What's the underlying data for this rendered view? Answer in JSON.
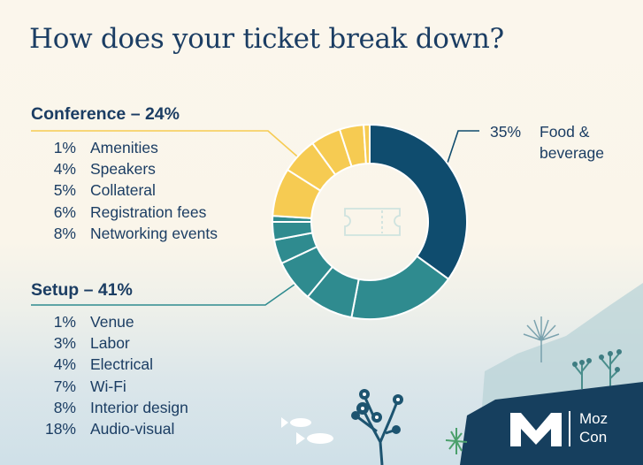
{
  "title": "How does your ticket break down?",
  "colors": {
    "food": "#0f4c6e",
    "setup": "#2f8b8f",
    "conference": "#f6cb52",
    "text": "#1b3d63"
  },
  "chart_data": {
    "type": "pie",
    "style": "donut",
    "center_icon": "ticket-icon",
    "groups": [
      {
        "name": "Food & beverage",
        "total_label": "35%",
        "color": "#0f4c6e",
        "slices": [
          {
            "label": "Food & beverage",
            "value": 35,
            "pct_label": "35%"
          }
        ]
      },
      {
        "name": "Setup",
        "heading": "Setup – 41%",
        "color": "#2f8b8f",
        "slices": [
          {
            "label": "Audio-visual",
            "value": 18,
            "pct_label": "18%"
          },
          {
            "label": "Interior design",
            "value": 8,
            "pct_label": "8%"
          },
          {
            "label": "Wi-Fi",
            "value": 7,
            "pct_label": "7%"
          },
          {
            "label": "Electrical",
            "value": 4,
            "pct_label": "4%"
          },
          {
            "label": "Labor",
            "value": 3,
            "pct_label": "3%"
          },
          {
            "label": "Venue",
            "value": 1,
            "pct_label": "1%"
          }
        ]
      },
      {
        "name": "Conference",
        "heading": "Conference – 24%",
        "color": "#f6cb52",
        "slices": [
          {
            "label": "Networking events",
            "value": 8,
            "pct_label": "8%"
          },
          {
            "label": "Registration fees",
            "value": 6,
            "pct_label": "6%"
          },
          {
            "label": "Collateral",
            "value": 5,
            "pct_label": "5%"
          },
          {
            "label": "Speakers",
            "value": 4,
            "pct_label": "4%"
          },
          {
            "label": "Amenities",
            "value": 1,
            "pct_label": "1%"
          }
        ]
      }
    ]
  },
  "conference": {
    "heading": "Conference – 24%",
    "items": [
      {
        "pct": "1%",
        "label": "Amenities"
      },
      {
        "pct": "4%",
        "label": "Speakers"
      },
      {
        "pct": "5%",
        "label": "Collateral"
      },
      {
        "pct": "6%",
        "label": "Registration fees"
      },
      {
        "pct": "8%",
        "label": "Networking events"
      }
    ]
  },
  "setup": {
    "heading": "Setup – 41%",
    "items": [
      {
        "pct": "1%",
        "label": "Venue"
      },
      {
        "pct": "3%",
        "label": "Labor"
      },
      {
        "pct": "4%",
        "label": "Electrical"
      },
      {
        "pct": "7%",
        "label": "Wi-Fi"
      },
      {
        "pct": "8%",
        "label": "Interior design"
      },
      {
        "pct": "18%",
        "label": "Audio-visual"
      }
    ]
  },
  "food": {
    "pct": "35%",
    "label": "Food & beverage"
  },
  "logo": {
    "mark": "M",
    "line1": "Moz",
    "line2": "Con"
  }
}
